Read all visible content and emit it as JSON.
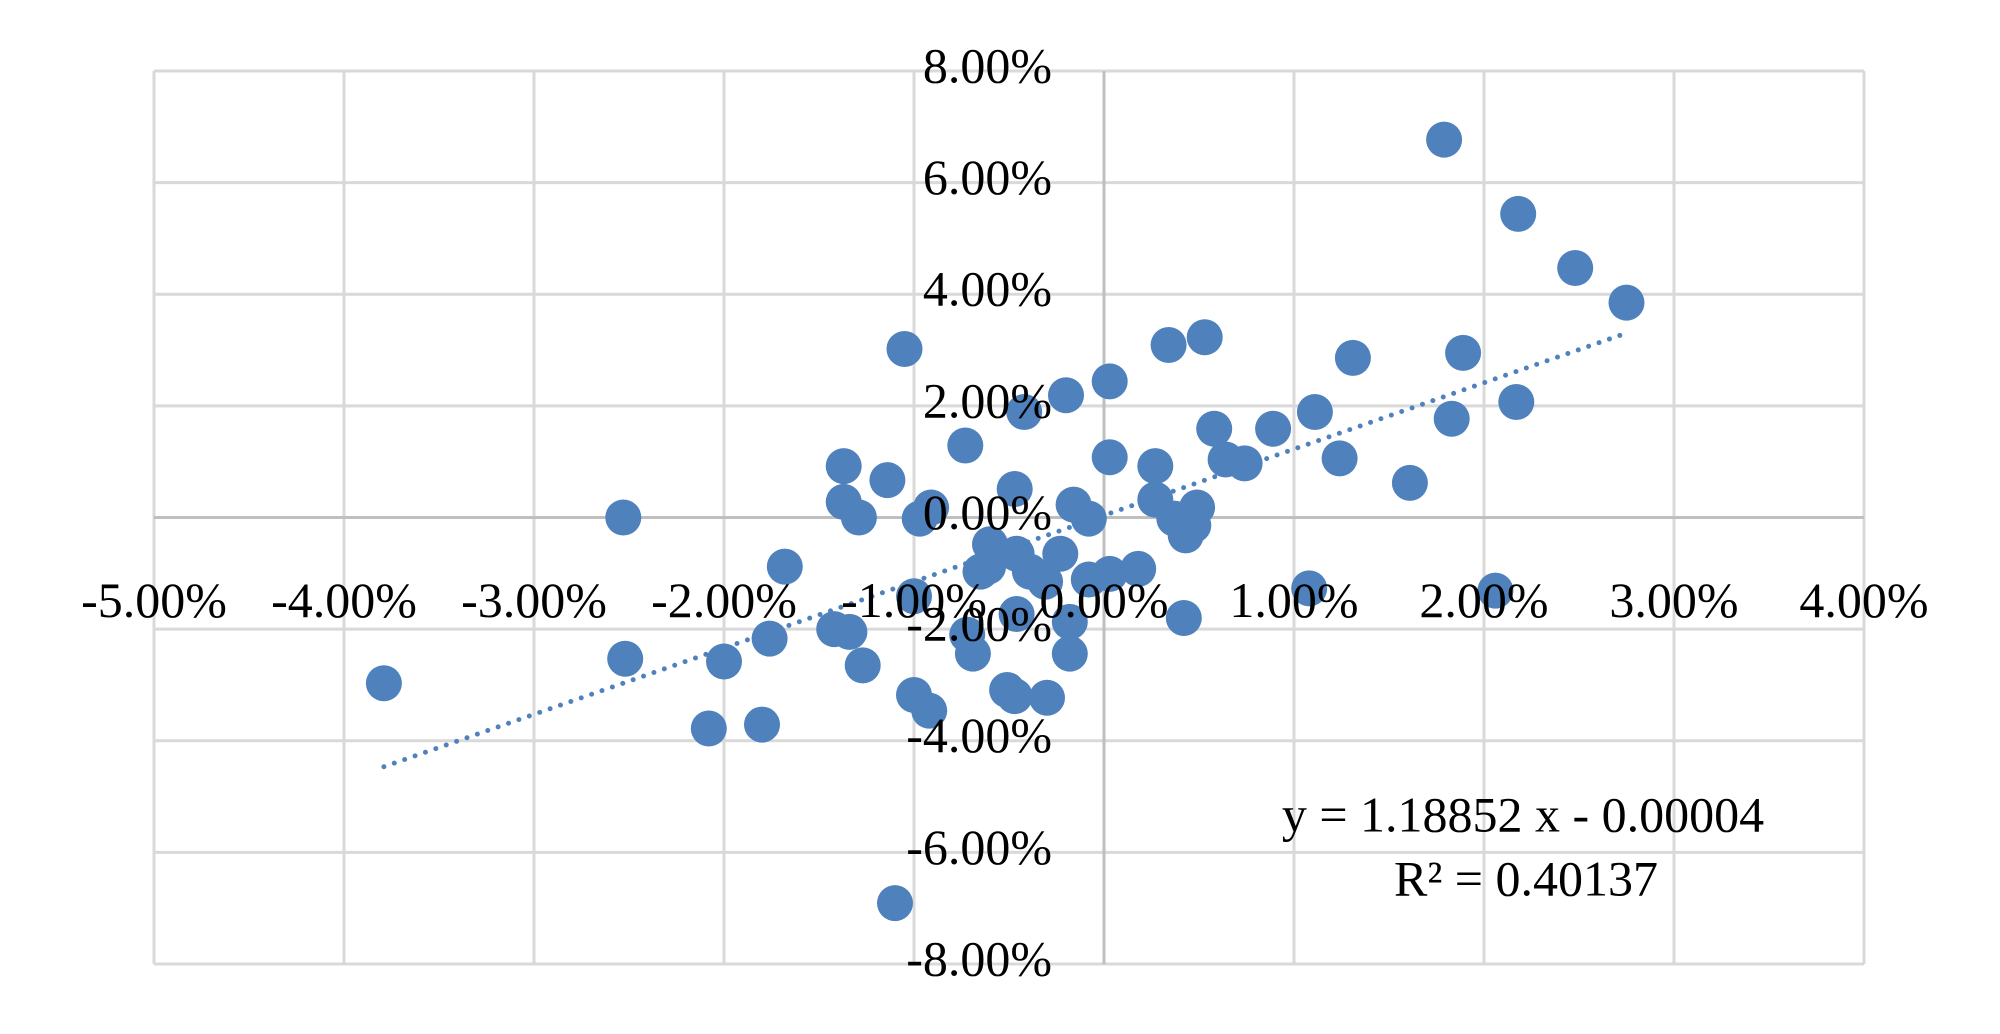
{
  "chart_data": {
    "type": "scatter",
    "color": "#4f81bd",
    "grid": true,
    "xlim": [
      -5,
      4
    ],
    "ylim": [
      -8,
      8
    ],
    "xticks": [
      {
        "value": -5,
        "label": "-5.00%"
      },
      {
        "value": -4,
        "label": "-4.00%"
      },
      {
        "value": -3,
        "label": "-3.00%"
      },
      {
        "value": -2,
        "label": "-2.00%"
      },
      {
        "value": -1,
        "label": "-1.00%"
      },
      {
        "value": 0,
        "label": "0.00%"
      },
      {
        "value": 1,
        "label": "1.00%"
      },
      {
        "value": 2,
        "label": "2.00%"
      },
      {
        "value": 3,
        "label": "3.00%"
      },
      {
        "value": 4,
        "label": "4.00%"
      }
    ],
    "yticks": [
      {
        "value": -8,
        "label": "-8.00%"
      },
      {
        "value": -6,
        "label": "-6.00%"
      },
      {
        "value": -4,
        "label": "-4.00%"
      },
      {
        "value": -2,
        "label": "-2.00%"
      },
      {
        "value": 0,
        "label": "0.00%"
      },
      {
        "value": 2,
        "label": "2.00%"
      },
      {
        "value": 4,
        "label": "4.00%"
      },
      {
        "value": 6,
        "label": "6.00%"
      },
      {
        "value": 8,
        "label": "8.00%"
      }
    ],
    "x": [
      1.79,
      2.18,
      2.48,
      2.75,
      1.89,
      1.31,
      0.53,
      0.34,
      -1.05,
      0.03,
      -0.2,
      -0.42,
      1.11,
      2.17,
      1.83,
      0.89,
      0.58,
      -0.73,
      0.03,
      0.27,
      0.64,
      0.74,
      1.24,
      1.61,
      -1.37,
      -1.14,
      -1.37,
      -1.29,
      -0.91,
      -2.53,
      -0.97,
      -0.47,
      -0.16,
      -0.08,
      0.27,
      0.49,
      0.37,
      0.47,
      0.43,
      -0.6,
      -0.46,
      -0.23,
      -0.65,
      -0.39,
      -0.31,
      -0.08,
      0.03,
      0.18,
      -1.68,
      -1.0,
      -0.46,
      -0.18,
      0.42,
      1.08,
      2.06,
      -1.42,
      -1.34,
      -1.76,
      -0.72,
      -0.69,
      -0.18,
      -1.27,
      -2.52,
      -2.0,
      -3.79,
      -1.0,
      -0.92,
      -0.51,
      -0.47,
      -0.3,
      -2.08,
      -1.8,
      -1.1,
      -0.61
    ],
    "values": [
      6.77,
      5.44,
      4.47,
      3.85,
      2.95,
      2.86,
      3.23,
      3.09,
      3.02,
      2.44,
      2.19,
      1.89,
      1.89,
      2.07,
      1.77,
      1.59,
      1.59,
      1.29,
      1.08,
      0.92,
      1.04,
      0.97,
      1.06,
      0.62,
      0.92,
      0.67,
      0.28,
      0.0,
      0.18,
      0.0,
      -0.02,
      0.51,
      0.23,
      -0.02,
      0.32,
      0.18,
      -0.02,
      -0.14,
      -0.32,
      -0.48,
      -0.65,
      -0.65,
      -0.97,
      -0.97,
      -1.15,
      -1.11,
      -1.01,
      -0.92,
      -0.88,
      -1.41,
      -1.73,
      -1.87,
      -1.8,
      -1.27,
      -1.31,
      -2.0,
      -2.05,
      -2.17,
      -2.1,
      -2.44,
      -2.44,
      -2.65,
      -2.53,
      -2.58,
      -2.97,
      -3.18,
      -3.46,
      -3.09,
      -3.2,
      -3.23,
      -3.78,
      -3.71,
      -6.91,
      -0.88
    ],
    "annotations": [
      "y = 1.18852 x - 0.00004",
      "R² = 0.40137"
    ]
  }
}
